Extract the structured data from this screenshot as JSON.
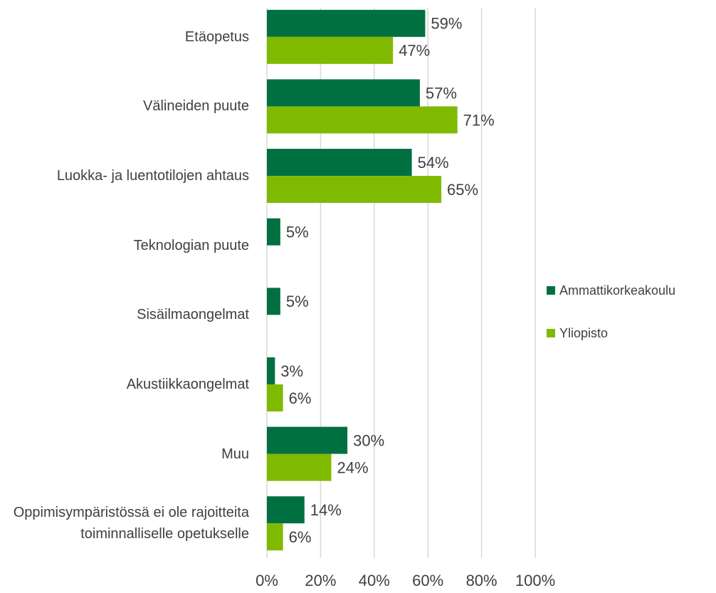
{
  "chart_data": {
    "type": "hbar",
    "categories": [
      "Etäopetus",
      "Välineiden puute",
      "Luokka- ja luentotilojen ahtaus",
      "Teknologian puute",
      "Sisäilmaongelmat",
      "Akustiikkaongelmat",
      "Muu",
      "Oppimisympäristössä ei ole rajoitteita toiminnalliselle opetukselle"
    ],
    "series": [
      {
        "name": "Ammattikorkeakoulu",
        "color": "#007041",
        "values": [
          59,
          57,
          54,
          5,
          5,
          3,
          30,
          14
        ],
        "value_labels": [
          "59%",
          "57%",
          "54%",
          "5%",
          "5%",
          "3%",
          "30%",
          "14%"
        ]
      },
      {
        "name": "Yliopisto",
        "color": "#7fba00",
        "values": [
          47,
          71,
          65,
          null,
          null,
          6,
          24,
          6
        ],
        "value_labels": [
          "47%",
          "71%",
          "65%",
          null,
          null,
          "6%",
          "24%",
          "6%"
        ]
      }
    ],
    "xlim": [
      0,
      100
    ],
    "xticks": [
      {
        "value": 0,
        "label": "0%"
      },
      {
        "value": 20,
        "label": "20%"
      },
      {
        "value": 40,
        "label": "40%"
      },
      {
        "value": 60,
        "label": "60%"
      },
      {
        "value": 80,
        "label": "80%"
      },
      {
        "value": 100,
        "label": "100%"
      }
    ],
    "grid": true,
    "legend": "right"
  }
}
